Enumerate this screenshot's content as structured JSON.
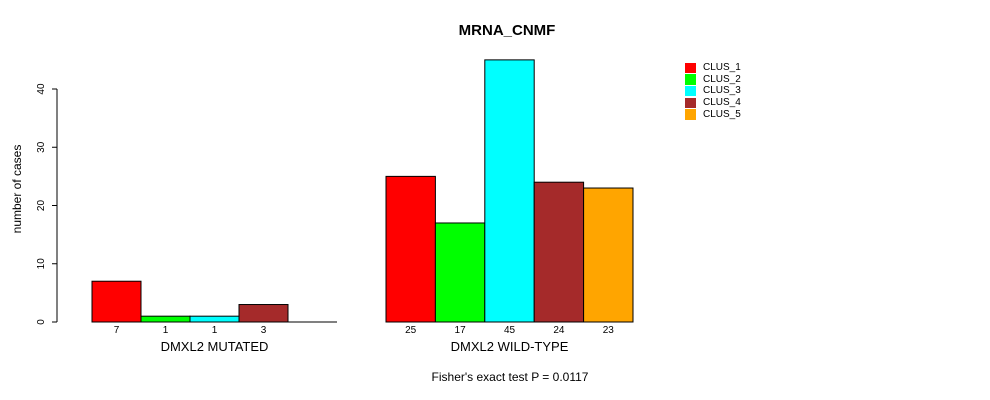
{
  "chart_data": {
    "type": "bar",
    "title": "MRNA_CNMF",
    "subtitle": "Fisher's exact test P = 0.0117",
    "ylabel": "number of cases",
    "xlabel": "",
    "categories": [
      "DMXL2 MUTATED",
      "DMXL2 WILD-TYPE"
    ],
    "series": [
      {
        "name": "CLUS_1",
        "color": "#FF0000",
        "values": [
          7,
          25
        ]
      },
      {
        "name": "CLUS_2",
        "color": "#00FF00",
        "values": [
          1,
          17
        ]
      },
      {
        "name": "CLUS_3",
        "color": "#00FFFF",
        "values": [
          1,
          45
        ]
      },
      {
        "name": "CLUS_4",
        "color": "#A52A2A",
        "values": [
          3,
          24
        ]
      },
      {
        "name": "CLUS_5",
        "color": "#FFA500",
        "values": [
          0,
          23
        ]
      }
    ],
    "yticks": [
      0,
      10,
      20,
      30,
      40
    ],
    "ylim": [
      0,
      45
    ],
    "grid": false,
    "legend_position": "right",
    "bar_border_color": "#000000",
    "axis_color": "#000000",
    "zero_value_labels_hidden": true
  }
}
